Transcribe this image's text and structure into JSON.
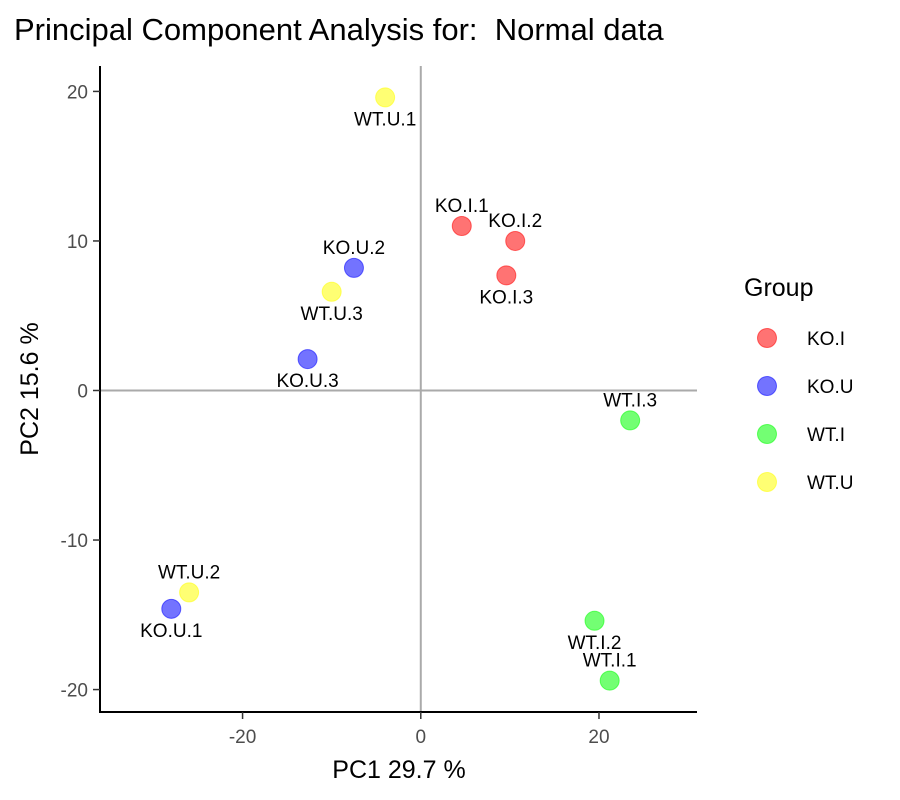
{
  "chart_data": {
    "type": "scatter",
    "title": "Principal Component Analysis for:  Normal data",
    "xlabel": "PC1 29.7 %",
    "ylabel": "PC2 15.6 %",
    "xlim": [
      -36,
      31
    ],
    "ylim": [
      -21.5,
      21.7
    ],
    "xticks": [
      -20,
      0,
      20
    ],
    "yticks": [
      20,
      10,
      0,
      -10,
      -20
    ],
    "xtick_labels": [
      "-20",
      "0",
      "20"
    ],
    "ytick_labels": [
      "20",
      "10",
      "0",
      "-10",
      "-20"
    ],
    "reference_lines": {
      "x": 0,
      "y": 0
    },
    "grid": false,
    "legend": {
      "title": "Group",
      "position": "right",
      "entries": [
        {
          "label": "KO.I",
          "color": "#ff0000"
        },
        {
          "label": "KO.U",
          "color": "#0000ff"
        },
        {
          "label": "WT.I",
          "color": "#00ff00"
        },
        {
          "label": "WT.U",
          "color": "#ffff00"
        }
      ]
    },
    "series": [
      {
        "name": "KO.I",
        "color": "#ff0000",
        "points": [
          {
            "label": "KO.I.1",
            "x": 4.6,
            "y": 11.0,
            "label_pos": "above"
          },
          {
            "label": "KO.I.2",
            "x": 10.6,
            "y": 10.0,
            "label_pos": "above"
          },
          {
            "label": "KO.I.3",
            "x": 9.6,
            "y": 7.7,
            "label_pos": "below"
          }
        ]
      },
      {
        "name": "KO.U",
        "color": "#0000ff",
        "points": [
          {
            "label": "KO.U.1",
            "x": -28.0,
            "y": -14.6,
            "label_pos": "below"
          },
          {
            "label": "KO.U.2",
            "x": -7.5,
            "y": 8.2,
            "label_pos": "above"
          },
          {
            "label": "KO.U.3",
            "x": -12.7,
            "y": 2.1,
            "label_pos": "below"
          }
        ]
      },
      {
        "name": "WT.I",
        "color": "#00ff00",
        "points": [
          {
            "label": "WT.I.1",
            "x": 21.2,
            "y": -19.4,
            "label_pos": "above"
          },
          {
            "label": "WT.I.2",
            "x": 19.5,
            "y": -15.4,
            "label_pos": "below"
          },
          {
            "label": "WT.I.3",
            "x": 23.5,
            "y": -2.0,
            "label_pos": "above"
          }
        ]
      },
      {
        "name": "WT.U",
        "color": "#ffff00",
        "points": [
          {
            "label": "WT.U.1",
            "x": -4.0,
            "y": 19.6,
            "label_pos": "below"
          },
          {
            "label": "WT.U.2",
            "x": -26.0,
            "y": -13.5,
            "label_pos": "above"
          },
          {
            "label": "WT.U.3",
            "x": -10.0,
            "y": 6.6,
            "label_pos": "below"
          }
        ]
      }
    ]
  }
}
